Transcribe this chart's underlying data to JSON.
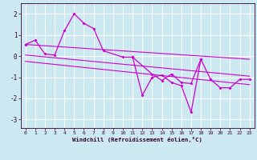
{
  "xlabel": "Windchill (Refroidissement éolien,°C)",
  "bg_color": "#cce8f0",
  "line_color": "#cc00cc",
  "grid_color": "#ffffff",
  "xlim": [
    -0.5,
    23.5
  ],
  "ylim": [
    -3.4,
    2.5
  ],
  "xticks": [
    0,
    1,
    2,
    3,
    4,
    5,
    6,
    7,
    8,
    9,
    10,
    11,
    12,
    13,
    14,
    15,
    16,
    17,
    18,
    19,
    20,
    21,
    22,
    23
  ],
  "yticks": [
    -3,
    -2,
    -1,
    0,
    1,
    2
  ],
  "series_main": {
    "x": [
      0,
      1,
      2,
      3,
      4,
      5,
      6,
      7,
      8,
      10,
      11,
      13,
      14,
      15,
      16,
      17,
      18,
      19,
      20,
      21,
      22,
      23
    ],
    "y": [
      0.55,
      0.75,
      0.1,
      0.05,
      1.2,
      2.0,
      1.55,
      1.3,
      0.25,
      -0.05,
      -0.05,
      -0.85,
      -1.15,
      -0.85,
      -1.25,
      -1.3,
      -0.15,
      -1.1,
      -1.5,
      -1.5,
      -1.1,
      -1.1
    ]
  },
  "series_alt": {
    "x": [
      11,
      12,
      13,
      14,
      15,
      16,
      17,
      18
    ],
    "y": [
      -0.05,
      -1.85,
      -1.0,
      -0.9,
      -1.25,
      -1.4,
      -2.65,
      -0.15
    ]
  },
  "trend1": {
    "x": [
      0,
      23
    ],
    "y": [
      0.55,
      -0.15
    ]
  },
  "trend2": {
    "x": [
      0,
      23
    ],
    "y": [
      0.05,
      -0.95
    ]
  },
  "trend3": {
    "x": [
      0,
      23
    ],
    "y": [
      -0.25,
      -1.35
    ]
  }
}
